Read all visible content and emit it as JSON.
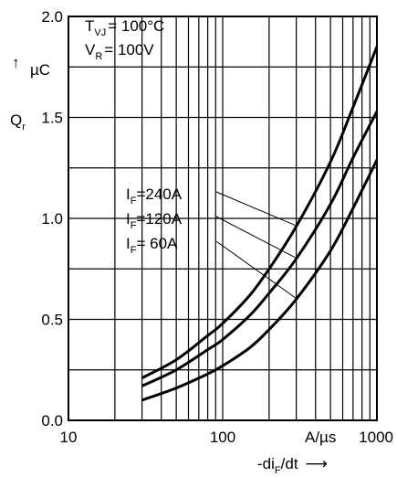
{
  "chart_data": {
    "type": "line",
    "x_scale": "log",
    "xlim": [
      10,
      1000
    ],
    "ylim": [
      0,
      2.0
    ],
    "grid": true,
    "x_ticks": [
      10,
      100,
      1000
    ],
    "x_tick_labels": [
      "10",
      "100",
      "1000"
    ],
    "y_ticks": [
      0,
      0.5,
      1.0,
      1.5,
      2.0
    ],
    "y_tick_labels": [
      "0.0",
      "0.5",
      "1.0",
      "1.5",
      "2.0"
    ],
    "xlabel": {
      "main": "-di",
      "sub": "F",
      "suffix": "/dt",
      "arrow": "⟶"
    },
    "x_unit": "A/µs",
    "ylabel": {
      "main": "Q",
      "sub": "r",
      "arrow": "↑"
    },
    "y_unit": "µC",
    "conditions": [
      {
        "main": "T",
        "sub": "VJ",
        "value": "= 100°C"
      },
      {
        "main": "V",
        "sub": "R",
        "value": "= 100V"
      }
    ],
    "series": [
      {
        "name": "240A",
        "label_main": "I",
        "label_sub": "F",
        "label_value": "=240A",
        "points": [
          [
            30,
            0.21
          ],
          [
            50,
            0.3
          ],
          [
            80,
            0.42
          ],
          [
            100,
            0.48
          ],
          [
            150,
            0.62
          ],
          [
            200,
            0.75
          ],
          [
            300,
            0.96
          ],
          [
            500,
            1.28
          ],
          [
            700,
            1.55
          ],
          [
            1000,
            1.85
          ]
        ]
      },
      {
        "name": "120A",
        "label_main": "I",
        "label_sub": "F",
        "label_value": "=120A",
        "points": [
          [
            30,
            0.17
          ],
          [
            50,
            0.25
          ],
          [
            80,
            0.35
          ],
          [
            100,
            0.4
          ],
          [
            150,
            0.52
          ],
          [
            200,
            0.63
          ],
          [
            300,
            0.8
          ],
          [
            500,
            1.07
          ],
          [
            700,
            1.3
          ],
          [
            1000,
            1.53
          ]
        ]
      },
      {
        "name": "60A",
        "label_main": "I",
        "label_sub": "F",
        "label_value": "=  60A",
        "points": [
          [
            30,
            0.1
          ],
          [
            50,
            0.16
          ],
          [
            80,
            0.23
          ],
          [
            100,
            0.27
          ],
          [
            150,
            0.36
          ],
          [
            200,
            0.45
          ],
          [
            300,
            0.6
          ],
          [
            500,
            0.84
          ],
          [
            700,
            1.05
          ],
          [
            1000,
            1.29
          ]
        ]
      }
    ]
  }
}
